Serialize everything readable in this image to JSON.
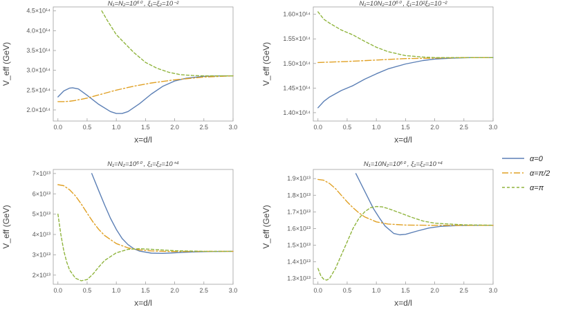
{
  "colors": {
    "alpha0": "#5b7fb5",
    "alpha_pi2": "#e0a023",
    "alpha_pi": "#8fb43c",
    "frame": "#9e9e9e",
    "text": "#555555"
  },
  "legend": {
    "items": [
      {
        "label": "α=0",
        "color": "#5b7fb5",
        "dash": ""
      },
      {
        "label": "α=π/2",
        "color": "#e0a023",
        "dash": "9,3,2,3"
      },
      {
        "label": "α=π",
        "color": "#8fb43c",
        "dash": "4,3"
      }
    ]
  },
  "chart_data": [
    {
      "type": "line",
      "title": "N₁=N₂=10⁶⁰ ,  ξ₁=ξ₂=10⁻²",
      "xlabel": "x=d/l",
      "ylabel": "V_eff (GeV)",
      "xlim": [
        -0.08,
        3.0
      ],
      "ylim": [
        1.72,
        4.6
      ],
      "xticks": [
        0.0,
        0.5,
        1.0,
        1.5,
        2.0,
        2.5,
        3.0
      ],
      "xtick_labels": [
        "0.0",
        "0.5",
        "1.0",
        "1.5",
        "2.0",
        "2.5",
        "3.0"
      ],
      "yticks": [
        2.0,
        2.5,
        3.0,
        3.5,
        4.0,
        4.5
      ],
      "ytick_labels": [
        "2.0×10¹⁴",
        "2.5×10¹⁴",
        "3.0×10¹⁴",
        "3.5×10¹⁴",
        "4.0×10¹⁴",
        "4.5×10¹⁴"
      ],
      "series": [
        {
          "name": "α=0",
          "x": [
            0.0,
            0.1,
            0.2,
            0.25,
            0.35,
            0.5,
            0.7,
            0.9,
            1.0,
            1.1,
            1.2,
            1.4,
            1.6,
            1.8,
            2.0,
            2.2,
            2.5,
            2.8,
            3.0
          ],
          "y": [
            2.33,
            2.48,
            2.55,
            2.56,
            2.53,
            2.37,
            2.14,
            1.96,
            1.91,
            1.91,
            1.96,
            2.16,
            2.4,
            2.6,
            2.73,
            2.8,
            2.85,
            2.86,
            2.86
          ]
        },
        {
          "name": "α=π/2",
          "x": [
            0.0,
            0.1,
            0.2,
            0.3,
            0.5,
            0.7,
            1.0,
            1.3,
            1.6,
            2.0,
            2.5,
            3.0
          ],
          "y": [
            2.21,
            2.21,
            2.22,
            2.24,
            2.3,
            2.38,
            2.5,
            2.6,
            2.68,
            2.76,
            2.83,
            2.86
          ]
        },
        {
          "name": "α=π",
          "x": [
            0.75,
            0.85,
            1.0,
            1.1,
            1.3,
            1.5,
            1.7,
            1.9,
            2.1,
            2.3,
            2.5,
            2.8,
            3.0
          ],
          "y": [
            4.5,
            4.25,
            3.9,
            3.75,
            3.45,
            3.2,
            3.05,
            2.95,
            2.89,
            2.87,
            2.86,
            2.86,
            2.86
          ]
        }
      ]
    },
    {
      "type": "line",
      "title": "N₁=10N₂=10⁶⁰ ,  ξ₁=10²ξ₂=10⁻²",
      "xlabel": "x=d/l",
      "ylabel": "V_eff (GeV)",
      "xlim": [
        -0.08,
        3.0
      ],
      "ylim": [
        1.383,
        1.615
      ],
      "xticks": [
        0.0,
        0.5,
        1.0,
        1.5,
        2.0,
        2.5,
        3.0
      ],
      "xtick_labels": [
        "0.0",
        "0.5",
        "1.0",
        "1.5",
        "2.0",
        "2.5",
        "3.0"
      ],
      "yticks": [
        1.4,
        1.45,
        1.5,
        1.55,
        1.6
      ],
      "ytick_labels": [
        "1.40×10¹⁴",
        "1.45×10¹⁴",
        "1.50×10¹⁴",
        "1.55×10¹⁴",
        "1.60×10¹⁴"
      ],
      "series": [
        {
          "name": "α=0",
          "x": [
            0.0,
            0.1,
            0.2,
            0.4,
            0.6,
            0.8,
            1.0,
            1.2,
            1.5,
            1.8,
            2.0,
            2.3,
            2.6,
            3.0
          ],
          "y": [
            1.41,
            1.423,
            1.432,
            1.445,
            1.455,
            1.468,
            1.479,
            1.489,
            1.499,
            1.506,
            1.509,
            1.511,
            1.512,
            1.512
          ]
        },
        {
          "name": "α=π/2",
          "x": [
            0.0,
            0.5,
            1.0,
            1.5,
            2.0,
            2.5,
            3.0
          ],
          "y": [
            1.502,
            1.504,
            1.507,
            1.51,
            1.511,
            1.512,
            1.512
          ]
        },
        {
          "name": "α=π",
          "x": [
            0.0,
            0.1,
            0.2,
            0.4,
            0.6,
            0.8,
            1.0,
            1.2,
            1.5,
            1.8,
            2.0,
            2.5,
            3.0
          ],
          "y": [
            1.605,
            1.59,
            1.582,
            1.568,
            1.558,
            1.545,
            1.533,
            1.524,
            1.516,
            1.513,
            1.512,
            1.512,
            1.512
          ]
        }
      ]
    },
    {
      "type": "line",
      "title": "N₁=N₂=10⁶⁰ ,  ξ₁=ξ₂=10⁺⁴",
      "xlabel": "x=d/l",
      "ylabel": "V_eff (GeV)",
      "xlim": [
        -0.08,
        3.0
      ],
      "ylim": [
        1.55,
        7.2
      ],
      "xticks": [
        0.0,
        0.5,
        1.0,
        1.5,
        2.0,
        2.5,
        3.0
      ],
      "xtick_labels": [
        "0.0",
        "0.5",
        "1.0",
        "1.5",
        "2.0",
        "2.5",
        "3.0"
      ],
      "yticks": [
        2,
        3,
        4,
        5,
        6,
        7
      ],
      "ytick_labels": [
        "2×10¹³",
        "3×10¹³",
        "4×10¹³",
        "5×10¹³",
        "6×10¹³",
        "7×10¹³"
      ],
      "series": [
        {
          "name": "α=0",
          "x": [
            0.58,
            0.7,
            0.8,
            0.9,
            1.0,
            1.1,
            1.2,
            1.3,
            1.4,
            1.6,
            1.8,
            2.0,
            2.3,
            2.6,
            3.0
          ],
          "y": [
            7.0,
            6.15,
            5.45,
            4.8,
            4.25,
            3.8,
            3.5,
            3.3,
            3.18,
            3.08,
            3.07,
            3.1,
            3.14,
            3.16,
            3.17
          ]
        },
        {
          "name": "α=π/2",
          "x": [
            0.0,
            0.1,
            0.2,
            0.3,
            0.4,
            0.5,
            0.6,
            0.7,
            0.8,
            1.0,
            1.2,
            1.4,
            1.6,
            1.8,
            2.0,
            2.5,
            3.0
          ],
          "y": [
            6.45,
            6.4,
            6.2,
            5.9,
            5.5,
            5.05,
            4.62,
            4.25,
            3.95,
            3.55,
            3.34,
            3.24,
            3.19,
            3.17,
            3.16,
            3.17,
            3.17
          ]
        },
        {
          "name": "α=π",
          "x": [
            0.0,
            0.05,
            0.1,
            0.15,
            0.2,
            0.3,
            0.4,
            0.5,
            0.6,
            0.7,
            0.8,
            1.0,
            1.2,
            1.4,
            1.6,
            2.0,
            2.5,
            3.0
          ],
          "y": [
            5.0,
            4.0,
            3.2,
            2.65,
            2.25,
            1.85,
            1.72,
            1.78,
            2.05,
            2.4,
            2.72,
            3.1,
            3.27,
            3.3,
            3.27,
            3.2,
            3.17,
            3.17
          ]
        }
      ]
    },
    {
      "type": "line",
      "title": "N₁=10N₂=10⁶⁰ ,  ξ₁=ξ₂=10⁺⁴",
      "xlabel": "x=d/l",
      "ylabel": "V_eff (GeV)",
      "xlim": [
        -0.08,
        3.0
      ],
      "ylim": [
        1.265,
        1.955
      ],
      "xticks": [
        0.0,
        0.5,
        1.0,
        1.5,
        2.0,
        2.5,
        3.0
      ],
      "xtick_labels": [
        "0.0",
        "0.5",
        "1.0",
        "1.5",
        "2.0",
        "2.5",
        "3.0"
      ],
      "yticks": [
        1.3,
        1.4,
        1.5,
        1.6,
        1.7,
        1.8,
        1.9
      ],
      "ytick_labels": [
        "1.3×10¹³",
        "1.4×10¹³",
        "1.5×10¹³",
        "1.6×10¹³",
        "1.7×10¹³",
        "1.8×10¹³",
        "1.9×10¹³"
      ],
      "series": [
        {
          "name": "α=0",
          "x": [
            0.65,
            0.75,
            0.85,
            0.95,
            1.05,
            1.15,
            1.3,
            1.4,
            1.5,
            1.7,
            1.9,
            2.1,
            2.4,
            2.7,
            3.0
          ],
          "y": [
            1.93,
            1.86,
            1.79,
            1.72,
            1.665,
            1.615,
            1.57,
            1.562,
            1.565,
            1.585,
            1.603,
            1.613,
            1.618,
            1.619,
            1.619
          ]
        },
        {
          "name": "α=π/2",
          "x": [
            0.0,
            0.1,
            0.2,
            0.3,
            0.4,
            0.5,
            0.6,
            0.7,
            0.8,
            1.0,
            1.2,
            1.5,
            2.0,
            2.5,
            3.0
          ],
          "y": [
            1.895,
            1.89,
            1.87,
            1.84,
            1.8,
            1.76,
            1.725,
            1.695,
            1.67,
            1.64,
            1.627,
            1.621,
            1.619,
            1.619,
            1.619
          ]
        },
        {
          "name": "α=π",
          "x": [
            0.0,
            0.05,
            0.1,
            0.15,
            0.2,
            0.3,
            0.4,
            0.5,
            0.6,
            0.7,
            0.8,
            0.9,
            1.0,
            1.1,
            1.2,
            1.4,
            1.6,
            1.8,
            2.0,
            2.5,
            3.0
          ],
          "y": [
            1.36,
            1.315,
            1.295,
            1.29,
            1.3,
            1.36,
            1.44,
            1.52,
            1.6,
            1.66,
            1.7,
            1.725,
            1.732,
            1.73,
            1.72,
            1.695,
            1.668,
            1.645,
            1.632,
            1.622,
            1.62
          ]
        }
      ]
    }
  ]
}
